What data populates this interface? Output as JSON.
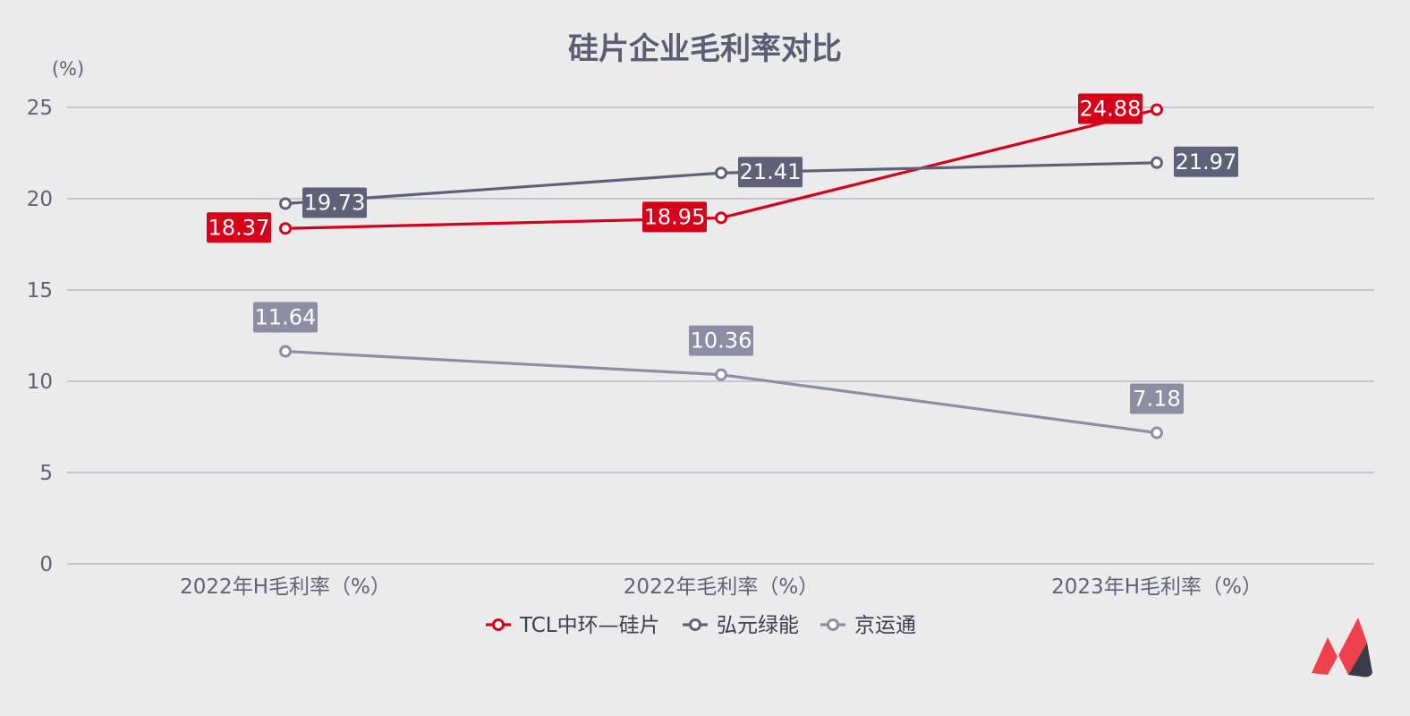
{
  "chart_data": {
    "type": "line",
    "title": "硅片企业毛利率对比",
    "unit": "(%)",
    "categories": [
      "2022年H毛利率（%）",
      "2022年毛利率（%）",
      "2023年H毛利率（%）"
    ],
    "ylim": [
      0,
      25
    ],
    "yticks": [
      "0",
      "5",
      "10",
      "15",
      "20",
      "25"
    ],
    "grid": true,
    "legend_position": "bottom-center",
    "series": [
      {
        "name": "TCL中环—硅片",
        "values": [
          18.37,
          18.95,
          24.88
        ],
        "labels": [
          "18.37",
          "18.95",
          "24.88"
        ],
        "color": "#d7001b"
      },
      {
        "name": "弘元绿能",
        "values": [
          19.73,
          21.41,
          21.97
        ],
        "labels": [
          "19.73",
          "21.41",
          "21.97"
        ],
        "color": "#5e6278"
      },
      {
        "name": "京运通",
        "values": [
          11.64,
          10.36,
          7.18
        ],
        "labels": [
          "11.64",
          "10.36",
          "7.18"
        ],
        "color": "#8c8fa4"
      }
    ]
  },
  "logo": {
    "name": "brand-logo-icon",
    "colors": [
      "#f0404e",
      "#3a3b48"
    ]
  }
}
